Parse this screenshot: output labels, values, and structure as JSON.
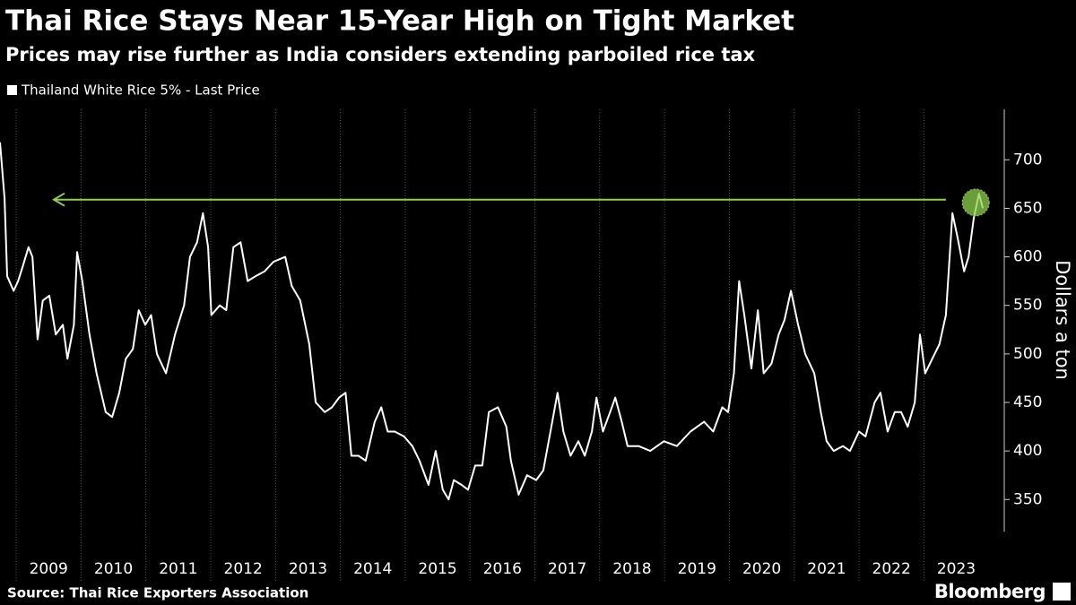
{
  "chart_data": {
    "type": "line",
    "title": "Thai Rice Stays Near 15-Year High on Tight Market",
    "subtitle": "Prices may rise further as India considers extending parboiled rice tax",
    "y_axis_label": "Dollars a ton",
    "source": "Source: Thai Rice Exporters Association",
    "brand": "Bloomberg",
    "x": [
      2008.75,
      2008.82,
      2008.86,
      2008.96,
      2009.03,
      2009.1,
      2009.19,
      2009.25,
      2009.33,
      2009.41,
      2009.51,
      2009.61,
      2009.72,
      2009.79,
      2009.89,
      2009.94,
      2010.02,
      2010.13,
      2010.24,
      2010.38,
      2010.48,
      2010.59,
      2010.69,
      2010.8,
      2010.89,
      2010.99,
      2011.08,
      2011.17,
      2011.31,
      2011.45,
      2011.59,
      2011.68,
      2011.79,
      2011.88,
      2011.96,
      2012.01,
      2012.14,
      2012.24,
      2012.35,
      2012.46,
      2012.57,
      2012.69,
      2012.83,
      2012.97,
      2013.15,
      2013.25,
      2013.38,
      2013.52,
      2013.62,
      2013.76,
      2013.87,
      2013.98,
      2014.08,
      2014.17,
      2014.28,
      2014.39,
      2014.53,
      2014.63,
      2014.73,
      2014.84,
      2014.98,
      2015.11,
      2015.22,
      2015.36,
      2015.47,
      2015.58,
      2015.67,
      2015.75,
      2015.87,
      2015.97,
      2016.08,
      2016.19,
      2016.29,
      2016.43,
      2016.56,
      2016.63,
      2016.75,
      2016.88,
      2017.02,
      2017.13,
      2017.24,
      2017.35,
      2017.44,
      2017.55,
      2017.67,
      2017.77,
      2017.88,
      2017.95,
      2018.05,
      2018.16,
      2018.24,
      2018.34,
      2018.43,
      2018.6,
      2018.78,
      2018.99,
      2019.19,
      2019.4,
      2019.61,
      2019.75,
      2019.89,
      2019.98,
      2020.07,
      2020.15,
      2020.23,
      2020.34,
      2020.44,
      2020.53,
      2020.65,
      2020.76,
      2020.85,
      2020.95,
      2021.06,
      2021.17,
      2021.31,
      2021.41,
      2021.5,
      2021.61,
      2021.75,
      2021.86,
      2022.0,
      2022.1,
      2022.24,
      2022.33,
      2022.44,
      2022.55,
      2022.65,
      2022.75,
      2022.86,
      2022.94,
      2023.02,
      2023.13,
      2023.24,
      2023.34,
      2023.44,
      2023.52,
      2023.62,
      2023.69,
      2023.77,
      2023.85,
      2023.91
    ],
    "series": [
      {
        "name": "Thailand White Rice 5% - Last Price",
        "color": "#ffffff",
        "values": [
          718,
          660,
          580,
          565,
          575,
          590,
          610,
          600,
          515,
          555,
          560,
          520,
          530,
          495,
          530,
          605,
          575,
          520,
          480,
          440,
          435,
          460,
          495,
          505,
          545,
          530,
          540,
          500,
          480,
          520,
          550,
          600,
          615,
          645,
          610,
          540,
          550,
          545,
          610,
          615,
          575,
          580,
          585,
          595,
          600,
          570,
          555,
          510,
          450,
          440,
          445,
          455,
          460,
          395,
          395,
          390,
          430,
          445,
          420,
          420,
          415,
          405,
          390,
          365,
          400,
          360,
          350,
          370,
          365,
          360,
          385,
          385,
          440,
          445,
          425,
          390,
          355,
          375,
          370,
          380,
          420,
          460,
          420,
          395,
          410,
          395,
          420,
          455,
          420,
          440,
          455,
          430,
          405,
          405,
          400,
          410,
          405,
          420,
          430,
          420,
          445,
          440,
          480,
          575,
          540,
          485,
          545,
          480,
          490,
          520,
          535,
          565,
          530,
          500,
          480,
          440,
          410,
          400,
          405,
          400,
          420,
          415,
          450,
          460,
          420,
          440,
          440,
          425,
          450,
          520,
          480,
          495,
          510,
          540,
          645,
          620,
          585,
          600,
          640,
          665,
          650
        ]
      }
    ],
    "reference_line": {
      "y": 659,
      "x_from": 2023.34,
      "x_to": 2009.58,
      "color": "#8fd14f"
    },
    "highlight": {
      "x": 2023.8,
      "y": 656,
      "color": "#8fd14f"
    },
    "xlim": [
      2008.75,
      2024.24
    ],
    "xticks": [
      {
        "value": 2009,
        "label": "2009"
      },
      {
        "value": 2010,
        "label": "2010"
      },
      {
        "value": 2011,
        "label": "2011"
      },
      {
        "value": 2012,
        "label": "2012"
      },
      {
        "value": 2013,
        "label": "2013"
      },
      {
        "value": 2014,
        "label": "2014"
      },
      {
        "value": 2015,
        "label": "2015"
      },
      {
        "value": 2016,
        "label": "2016"
      },
      {
        "value": 2017,
        "label": "2017"
      },
      {
        "value": 2018,
        "label": "2018"
      },
      {
        "value": 2019,
        "label": "2019"
      },
      {
        "value": 2020,
        "label": "2020"
      },
      {
        "value": 2021,
        "label": "2021"
      },
      {
        "value": 2022,
        "label": "2022"
      },
      {
        "value": 2023,
        "label": "2023"
      }
    ],
    "ylim": [
      317,
      752
    ],
    "yticks": [
      350,
      400,
      450,
      500,
      550,
      600,
      650,
      700
    ],
    "grid": true
  }
}
